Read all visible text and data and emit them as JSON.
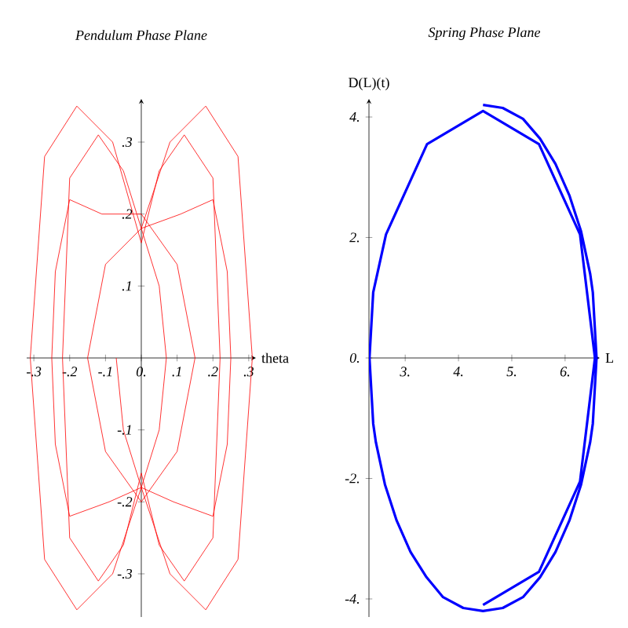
{
  "chart_data": [
    {
      "type": "line",
      "title": "Pendulum Phase Plane",
      "xlabel": "theta",
      "xlim": [
        -0.32,
        0.32
      ],
      "ylim": [
        -0.36,
        0.36
      ],
      "xticks": [
        {
          "value": -0.3,
          "label": "-.3"
        },
        {
          "value": -0.2,
          "label": "-.2"
        },
        {
          "value": -0.1,
          "label": "-.1"
        },
        {
          "value": 0,
          "label": "0."
        },
        {
          "value": 0.1,
          "label": ".1"
        },
        {
          "value": 0.2,
          "label": ".2"
        },
        {
          "value": 0.3,
          "label": ".3"
        }
      ],
      "yticks": [
        {
          "value": -0.3,
          "label": "-.3"
        },
        {
          "value": -0.2,
          "label": "-.2"
        },
        {
          "value": -0.1,
          "label": "-.1"
        },
        {
          "value": 0.1,
          "label": ".1"
        },
        {
          "value": 0.2,
          "label": ".2"
        },
        {
          "value": 0.3,
          "label": ".3"
        }
      ],
      "series": [
        {
          "color": "#ff0000",
          "x": [
            0,
            0.08,
            0.18,
            0.27,
            0.31,
            0.27,
            0.18,
            0.08,
            0,
            -0.08,
            -0.18,
            -0.27,
            -0.31,
            -0.27,
            -0.18,
            -0.08,
            0,
            0.05,
            0.12,
            0.2,
            0.22,
            0.2,
            0.12,
            0.05,
            0,
            -0.05,
            -0.12,
            -0.2,
            -0.22,
            -0.2,
            -0.12,
            -0.05,
            0,
            0.11,
            0.2,
            0.24,
            0.25,
            0.24,
            0.2,
            0.09,
            0,
            -0.09,
            -0.2,
            -0.24,
            -0.25,
            -0.24,
            -0.2,
            -0.11,
            0,
            0.1,
            0.15,
            0.1,
            0,
            -0.1,
            -0.15,
            -0.1,
            0,
            0.05,
            0.07,
            0.05,
            0,
            -0.05,
            -0.07
          ],
          "values": [
            0.18,
            0.3,
            0.35,
            0.28,
            0,
            -0.28,
            -0.35,
            -0.3,
            -0.18,
            -0.3,
            -0.35,
            -0.28,
            0,
            0.28,
            0.35,
            0.3,
            0.16,
            0.26,
            0.31,
            0.25,
            0,
            -0.25,
            -0.31,
            -0.26,
            -0.16,
            -0.26,
            -0.31,
            -0.25,
            0,
            0.25,
            0.31,
            0.26,
            0.18,
            0.2,
            0.22,
            0.12,
            0,
            -0.12,
            -0.22,
            -0.2,
            -0.18,
            -0.2,
            -0.22,
            -0.12,
            0,
            0.12,
            0.22,
            0.2,
            0.2,
            0.13,
            0,
            -0.13,
            -0.2,
            -0.13,
            0,
            0.13,
            0.18,
            0.1,
            0,
            -0.1,
            -0.18,
            -0.1,
            0
          ]
        }
      ]
    },
    {
      "type": "line",
      "title": "Spring Phase Plane",
      "xlabel": "L",
      "ylabel": "D(L)(t)",
      "xlim": [
        2.32,
        6.65
      ],
      "ylim": [
        -4.3,
        4.3
      ],
      "xticks": [
        {
          "value": 3,
          "label": "3."
        },
        {
          "value": 4,
          "label": "4."
        },
        {
          "value": 5,
          "label": "5."
        },
        {
          "value": 6,
          "label": "6."
        }
      ],
      "yticks": [
        {
          "value": -4,
          "label": "-4."
        },
        {
          "value": -2,
          "label": "-2."
        },
        {
          "value": 0,
          "label": "0."
        },
        {
          "value": 2,
          "label": "2."
        },
        {
          "value": 4,
          "label": "4."
        }
      ],
      "series": [
        {
          "color": "#0000ff",
          "x": [
            4.46,
            4.83,
            5.21,
            5.53,
            5.82,
            6.08,
            6.3,
            6.47,
            6.52,
            6.59,
            6.52,
            6.47,
            6.3,
            6.08,
            5.82,
            5.53,
            5.21,
            4.83,
            4.46,
            4.09,
            3.71,
            3.4,
            3.1,
            2.84,
            2.62,
            2.45,
            2.4,
            2.33,
            2.4,
            2.64,
            3.41,
            4.46,
            5.51,
            6.28,
            6.56,
            6.28,
            5.51,
            4.46
          ],
          "values": [
            4.2,
            4.15,
            3.97,
            3.64,
            3.22,
            2.7,
            2.1,
            1.4,
            1.09,
            0,
            -1.09,
            -1.4,
            -2.1,
            -2.7,
            -3.22,
            -3.64,
            -3.97,
            -4.15,
            -4.2,
            -4.15,
            -3.97,
            -3.64,
            -3.22,
            -2.7,
            -2.1,
            -1.4,
            -1.09,
            0,
            1.09,
            2.05,
            3.55,
            4.1,
            3.55,
            2.05,
            0,
            -2.05,
            -3.55,
            -4.1
          ]
        }
      ]
    }
  ]
}
